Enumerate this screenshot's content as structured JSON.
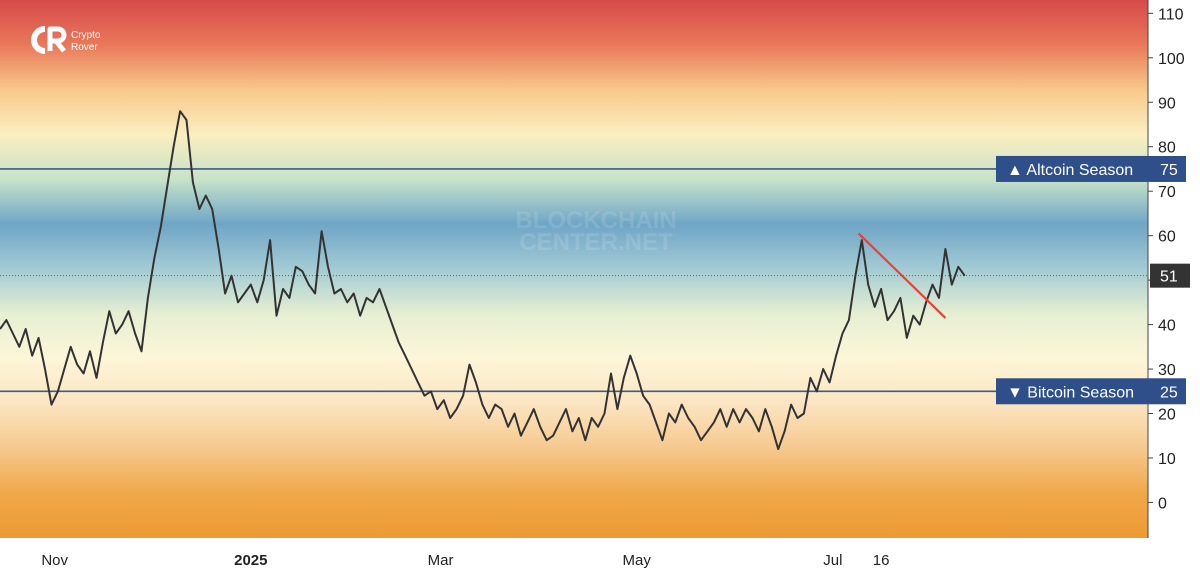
{
  "branding": {
    "logo_text": "CR",
    "name_line1": "Crypto",
    "name_line2": "Rover"
  },
  "watermark": {
    "line1": "BLOCKCHAIN",
    "line2": "CENTER.NET"
  },
  "colors": {
    "gradient_stops": [
      "#d64a4a",
      "#e9785a",
      "#f8c88a",
      "#fbeec0",
      "#c7e3c9",
      "#6fa5c6",
      "#a3cbd4",
      "#e6efd3",
      "#fdf6d8",
      "#fbe5c2",
      "#f6c98e",
      "#f0a84a",
      "#ee9a33"
    ],
    "line": "#333333",
    "threshold_line": "#3c5a8a",
    "badge_bg": "#2e4f8a",
    "current_badge_bg": "#333333",
    "trendline": "#e8403a",
    "axis_text": "#222222"
  },
  "chart_data": {
    "type": "line",
    "title": "",
    "xlabel": "",
    "ylabel": "",
    "ylim": [
      -8,
      113
    ],
    "y_ticks": [
      0,
      10,
      20,
      30,
      40,
      50,
      60,
      70,
      80,
      90,
      100,
      110
    ],
    "x_tick_labels": [
      {
        "label": "Nov",
        "date": "2024-11-01"
      },
      {
        "label": "2025",
        "date": "2025-01-01"
      },
      {
        "label": "Mar",
        "date": "2025-03-01"
      },
      {
        "label": "May",
        "date": "2025-05-01"
      },
      {
        "label": "Jul",
        "date": "2025-07-01"
      },
      {
        "label": "16",
        "date": "2025-07-16"
      }
    ],
    "x_start": "2024-10-15",
    "x_end": "2025-10-07",
    "series": [
      {
        "values": [
          [
            "2024-10-15",
            39
          ],
          [
            "2024-10-17",
            41
          ],
          [
            "2024-10-19",
            38
          ],
          [
            "2024-10-21",
            35
          ],
          [
            "2024-10-23",
            39
          ],
          [
            "2024-10-25",
            33
          ],
          [
            "2024-10-27",
            37
          ],
          [
            "2024-10-29",
            30
          ],
          [
            "2024-10-31",
            22
          ],
          [
            "2024-11-02",
            25
          ],
          [
            "2024-11-04",
            30
          ],
          [
            "2024-11-06",
            35
          ],
          [
            "2024-11-08",
            31
          ],
          [
            "2024-11-10",
            29
          ],
          [
            "2024-11-12",
            34
          ],
          [
            "2024-11-14",
            28
          ],
          [
            "2024-11-16",
            36
          ],
          [
            "2024-11-18",
            43
          ],
          [
            "2024-11-20",
            38
          ],
          [
            "2024-11-22",
            40
          ],
          [
            "2024-11-24",
            43
          ],
          [
            "2024-11-26",
            38
          ],
          [
            "2024-11-28",
            34
          ],
          [
            "2024-11-30",
            46
          ],
          [
            "2024-12-02",
            55
          ],
          [
            "2024-12-04",
            62
          ],
          [
            "2024-12-06",
            71
          ],
          [
            "2024-12-08",
            80
          ],
          [
            "2024-12-10",
            88
          ],
          [
            "2024-12-12",
            86
          ],
          [
            "2024-12-14",
            72
          ],
          [
            "2024-12-16",
            66
          ],
          [
            "2024-12-18",
            69
          ],
          [
            "2024-12-20",
            66
          ],
          [
            "2024-12-22",
            57
          ],
          [
            "2024-12-24",
            47
          ],
          [
            "2024-12-26",
            51
          ],
          [
            "2024-12-28",
            45
          ],
          [
            "2024-12-30",
            47
          ],
          [
            "2025-01-01",
            49
          ],
          [
            "2025-01-03",
            45
          ],
          [
            "2025-01-05",
            50
          ],
          [
            "2025-01-07",
            59
          ],
          [
            "2025-01-09",
            42
          ],
          [
            "2025-01-11",
            48
          ],
          [
            "2025-01-13",
            46
          ],
          [
            "2025-01-15",
            53
          ],
          [
            "2025-01-17",
            52
          ],
          [
            "2025-01-19",
            49
          ],
          [
            "2025-01-21",
            47
          ],
          [
            "2025-01-23",
            61
          ],
          [
            "2025-01-25",
            53
          ],
          [
            "2025-01-27",
            47
          ],
          [
            "2025-01-29",
            48
          ],
          [
            "2025-01-31",
            45
          ],
          [
            "2025-02-02",
            47
          ],
          [
            "2025-02-04",
            42
          ],
          [
            "2025-02-06",
            46
          ],
          [
            "2025-02-08",
            45
          ],
          [
            "2025-02-10",
            48
          ],
          [
            "2025-02-12",
            44
          ],
          [
            "2025-02-14",
            40
          ],
          [
            "2025-02-16",
            36
          ],
          [
            "2025-02-18",
            33
          ],
          [
            "2025-02-20",
            30
          ],
          [
            "2025-02-22",
            27
          ],
          [
            "2025-02-24",
            24
          ],
          [
            "2025-02-26",
            25
          ],
          [
            "2025-02-28",
            21
          ],
          [
            "2025-03-02",
            23
          ],
          [
            "2025-03-04",
            19
          ],
          [
            "2025-03-06",
            21
          ],
          [
            "2025-03-08",
            24
          ],
          [
            "2025-03-10",
            31
          ],
          [
            "2025-03-12",
            27
          ],
          [
            "2025-03-14",
            22
          ],
          [
            "2025-03-16",
            19
          ],
          [
            "2025-03-18",
            22
          ],
          [
            "2025-03-20",
            21
          ],
          [
            "2025-03-22",
            17
          ],
          [
            "2025-03-24",
            20
          ],
          [
            "2025-03-26",
            15
          ],
          [
            "2025-03-28",
            18
          ],
          [
            "2025-03-30",
            21
          ],
          [
            "2025-04-01",
            17
          ],
          [
            "2025-04-03",
            14
          ],
          [
            "2025-04-05",
            15
          ],
          [
            "2025-04-07",
            18
          ],
          [
            "2025-04-09",
            21
          ],
          [
            "2025-04-11",
            16
          ],
          [
            "2025-04-13",
            19
          ],
          [
            "2025-04-15",
            14
          ],
          [
            "2025-04-17",
            19
          ],
          [
            "2025-04-19",
            17
          ],
          [
            "2025-04-21",
            20
          ],
          [
            "2025-04-23",
            29
          ],
          [
            "2025-04-25",
            21
          ],
          [
            "2025-04-27",
            28
          ],
          [
            "2025-04-29",
            33
          ],
          [
            "2025-05-01",
            29
          ],
          [
            "2025-05-03",
            24
          ],
          [
            "2025-05-05",
            22
          ],
          [
            "2025-05-07",
            18
          ],
          [
            "2025-05-09",
            14
          ],
          [
            "2025-05-11",
            20
          ],
          [
            "2025-05-13",
            18
          ],
          [
            "2025-05-15",
            22
          ],
          [
            "2025-05-17",
            19
          ],
          [
            "2025-05-19",
            17
          ],
          [
            "2025-05-21",
            14
          ],
          [
            "2025-05-23",
            16
          ],
          [
            "2025-05-25",
            18
          ],
          [
            "2025-05-27",
            21
          ],
          [
            "2025-05-29",
            17
          ],
          [
            "2025-05-31",
            21
          ],
          [
            "2025-06-02",
            18
          ],
          [
            "2025-06-04",
            21
          ],
          [
            "2025-06-06",
            19
          ],
          [
            "2025-06-08",
            16
          ],
          [
            "2025-06-10",
            21
          ],
          [
            "2025-06-12",
            17
          ],
          [
            "2025-06-14",
            12
          ],
          [
            "2025-06-16",
            16
          ],
          [
            "2025-06-18",
            22
          ],
          [
            "2025-06-20",
            19
          ],
          [
            "2025-06-22",
            20
          ],
          [
            "2025-06-24",
            28
          ],
          [
            "2025-06-26",
            25
          ],
          [
            "2025-06-28",
            30
          ],
          [
            "2025-06-30",
            27
          ],
          [
            "2025-07-02",
            33
          ],
          [
            "2025-07-04",
            38
          ],
          [
            "2025-07-06",
            41
          ],
          [
            "2025-07-08",
            51
          ],
          [
            "2025-07-10",
            59
          ],
          [
            "2025-07-12",
            49
          ],
          [
            "2025-07-14",
            44
          ],
          [
            "2025-07-16",
            48
          ],
          [
            "2025-07-18",
            41
          ],
          [
            "2025-07-20",
            43
          ],
          [
            "2025-07-22",
            46
          ],
          [
            "2025-07-24",
            37
          ],
          [
            "2025-07-26",
            42
          ],
          [
            "2025-07-28",
            40
          ],
          [
            "2025-07-30",
            45
          ],
          [
            "2025-08-01",
            49
          ],
          [
            "2025-08-03",
            46
          ],
          [
            "2025-08-05",
            57
          ],
          [
            "2025-08-07",
            49
          ],
          [
            "2025-08-09",
            53
          ],
          [
            "2025-08-11",
            51
          ]
        ]
      }
    ],
    "reference_lines": [
      {
        "label": "▲ Altcoin Season",
        "value": 75
      },
      {
        "label": "▼ Bitcoin Season",
        "value": 25
      }
    ],
    "current_value": 51,
    "trendline": {
      "from": [
        "2025-07-09",
        60.5
      ],
      "to": [
        "2025-08-05",
        41.5
      ]
    },
    "grid": false
  }
}
